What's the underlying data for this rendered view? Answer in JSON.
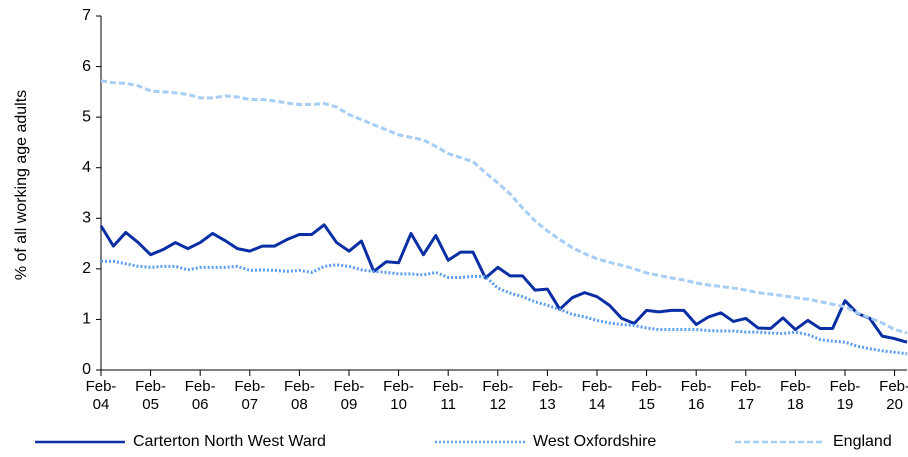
{
  "chart_data": {
    "type": "line",
    "y_label": "% of all working age adults",
    "categories": [
      "Feb-04",
      null,
      null,
      null,
      "Feb-05",
      null,
      null,
      null,
      "Feb-06",
      null,
      null,
      null,
      "Feb-07",
      null,
      null,
      null,
      "Feb-08",
      null,
      null,
      null,
      "Feb-09",
      null,
      null,
      null,
      "Feb-10",
      null,
      null,
      null,
      "Feb-11",
      null,
      null,
      null,
      "Feb-12",
      null,
      null,
      null,
      "Feb-13",
      null,
      null,
      null,
      "Feb-14",
      null,
      null,
      null,
      "Feb-15",
      null,
      null,
      null,
      "Feb-16",
      null,
      null,
      null,
      "Feb-17",
      null,
      null,
      null,
      "Feb-18",
      null,
      null,
      null,
      "Feb-19",
      null,
      null,
      null,
      "Feb-20",
      null
    ],
    "ylim": [
      0,
      7
    ],
    "yticks": [
      0,
      1,
      2,
      3,
      4,
      5,
      6,
      7
    ],
    "series": [
      {
        "name": "Carterton North West Ward",
        "color": "#0a2ea4",
        "style": "solid",
        "values": [
          2.85,
          2.45,
          2.72,
          2.52,
          2.28,
          2.38,
          2.52,
          2.4,
          2.52,
          2.7,
          2.56,
          2.4,
          2.35,
          2.45,
          2.45,
          2.58,
          2.68,
          2.68,
          2.87,
          2.52,
          2.35,
          2.55,
          1.95,
          2.14,
          2.12,
          2.7,
          2.28,
          2.66,
          2.17,
          2.33,
          2.33,
          1.82,
          2.03,
          1.86,
          1.86,
          1.58,
          1.6,
          1.2,
          1.43,
          1.53,
          1.45,
          1.28,
          1.02,
          0.92,
          1.18,
          1.15,
          1.18,
          1.18,
          0.9,
          1.05,
          1.13,
          0.96,
          1.02,
          0.83,
          0.82,
          1.03,
          0.8,
          0.98,
          0.82,
          0.82,
          1.37,
          1.12,
          1.02,
          0.67,
          0.62,
          0.55
        ]
      },
      {
        "name": "West Oxfordshire",
        "color": "#5b9bf0",
        "style": "dotted",
        "values": [
          2.15,
          2.15,
          2.1,
          2.05,
          2.03,
          2.05,
          2.05,
          1.98,
          2.03,
          2.03,
          2.03,
          2.05,
          1.97,
          1.98,
          1.97,
          1.95,
          1.97,
          1.93,
          2.05,
          2.08,
          2.05,
          1.98,
          1.95,
          1.93,
          1.9,
          1.9,
          1.88,
          1.93,
          1.83,
          1.83,
          1.85,
          1.85,
          1.62,
          1.52,
          1.45,
          1.35,
          1.28,
          1.2,
          1.1,
          1.05,
          0.98,
          0.93,
          0.9,
          0.88,
          0.83,
          0.8,
          0.8,
          0.8,
          0.8,
          0.78,
          0.77,
          0.77,
          0.75,
          0.75,
          0.73,
          0.72,
          0.75,
          0.7,
          0.6,
          0.57,
          0.55,
          0.47,
          0.42,
          0.38,
          0.35,
          0.32
        ]
      },
      {
        "name": "England",
        "color": "#a6cdf5",
        "style": "dashed",
        "values": [
          5.72,
          5.68,
          5.67,
          5.62,
          5.52,
          5.5,
          5.48,
          5.45,
          5.38,
          5.38,
          5.42,
          5.4,
          5.35,
          5.35,
          5.32,
          5.28,
          5.25,
          5.25,
          5.27,
          5.2,
          5.05,
          4.95,
          4.85,
          4.75,
          4.65,
          4.6,
          4.55,
          4.42,
          4.28,
          4.2,
          4.12,
          3.9,
          3.7,
          3.48,
          3.2,
          2.95,
          2.75,
          2.58,
          2.42,
          2.3,
          2.2,
          2.13,
          2.07,
          2.0,
          1.92,
          1.87,
          1.82,
          1.78,
          1.72,
          1.68,
          1.65,
          1.62,
          1.58,
          1.53,
          1.5,
          1.47,
          1.43,
          1.4,
          1.35,
          1.3,
          1.25,
          1.13,
          1.03,
          0.93,
          0.8,
          0.73
        ]
      }
    ]
  }
}
